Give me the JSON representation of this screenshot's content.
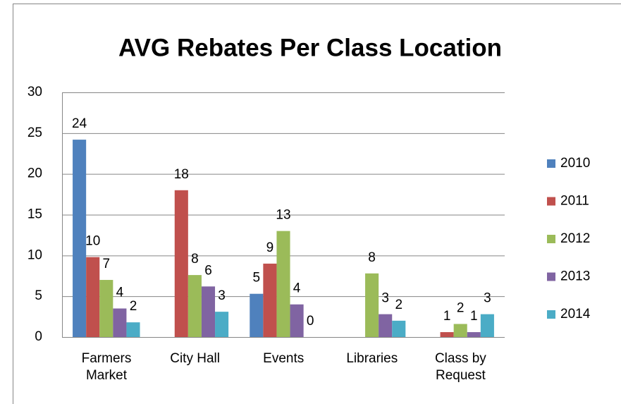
{
  "chart_data": {
    "type": "bar",
    "title": "AVG Rebates Per Class Location",
    "categories": [
      "Farmers\nMarket",
      "City Hall",
      "Events",
      "Libraries",
      "Class by\nRequest"
    ],
    "series": [
      {
        "name": "2010",
        "color": "#4f81bd",
        "values": [
          24.2,
          null,
          5.3,
          null,
          null
        ],
        "value_labels": [
          "24",
          null,
          "5",
          null,
          null
        ]
      },
      {
        "name": "2011",
        "color": "#c0504d",
        "values": [
          9.8,
          18.0,
          9.0,
          null,
          0.6
        ],
        "value_labels": [
          "10",
          "18",
          "9",
          null,
          "1"
        ]
      },
      {
        "name": "2012",
        "color": "#9bbb59",
        "values": [
          7.0,
          7.6,
          13.0,
          7.8,
          1.6
        ],
        "value_labels": [
          "7",
          "8",
          "13",
          "8",
          "2"
        ]
      },
      {
        "name": "2013",
        "color": "#8064a2",
        "values": [
          3.5,
          6.2,
          4.0,
          2.8,
          0.6
        ],
        "value_labels": [
          "4",
          "6",
          "4",
          "3",
          "1"
        ]
      },
      {
        "name": "2014",
        "color": "#4bacc6",
        "values": [
          1.8,
          3.1,
          0,
          2.0,
          2.8
        ],
        "value_labels": [
          "2",
          "3",
          "0",
          "2",
          "3"
        ]
      }
    ],
    "ylim": [
      0,
      30
    ],
    "yticks": [
      0,
      5,
      10,
      15,
      20,
      25,
      30
    ],
    "grid": true,
    "legend": "right"
  }
}
